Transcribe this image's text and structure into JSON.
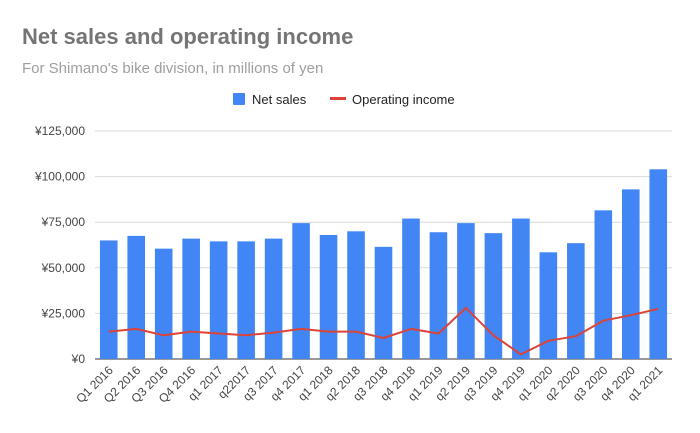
{
  "title": "Net sales and operating income",
  "subtitle": "For Shimano's bike division, in millions of yen",
  "colors": {
    "net_sales": "#4285f4",
    "operating_income": "#db4437",
    "grid": "#d9d9d9",
    "axis_text": "#444444"
  },
  "chart_data": {
    "type": "bar",
    "title": "Net sales and operating income",
    "subtitle": "For Shimano's bike division, in millions of yen",
    "legend_position": "top-center",
    "grid": true,
    "categories": [
      "Q1 2016",
      "Q2 2016",
      "Q3 2016",
      "Q4 2016",
      "q1 2017",
      "q22017",
      "q3 2017",
      "q4 2017",
      "q1 2018",
      "q2 2018",
      "q3 2018",
      "q4 2018",
      "q1 2019",
      "q2 2019",
      "q3 2019",
      "q4 2019",
      "q1 2020",
      "q2 2020",
      "q3 2020",
      "q4 2020",
      "q1 2021"
    ],
    "series": [
      {
        "name": "Net sales",
        "type": "bar",
        "color": "#4285f4",
        "values": [
          65000,
          67500,
          60500,
          66000,
          64500,
          64500,
          66000,
          74500,
          68000,
          70000,
          61500,
          77000,
          69500,
          74500,
          69000,
          77000,
          58500,
          63500,
          81500,
          93000,
          104000
        ]
      },
      {
        "name": "Operating income",
        "type": "line",
        "color": "#db4437",
        "values": [
          15000,
          16500,
          13000,
          15000,
          14000,
          13000,
          14500,
          16500,
          15000,
          15000,
          11500,
          16500,
          14000,
          28000,
          13000,
          2500,
          10000,
          12500,
          21000,
          24000,
          27500
        ]
      }
    ],
    "ylim": [
      0,
      125000
    ],
    "yticks": [
      0,
      25000,
      50000,
      75000,
      100000,
      125000
    ],
    "ytick_labels": [
      "¥0",
      "¥25,000",
      "¥50,000",
      "¥75,000",
      "¥100,000",
      "¥125,000"
    ]
  }
}
